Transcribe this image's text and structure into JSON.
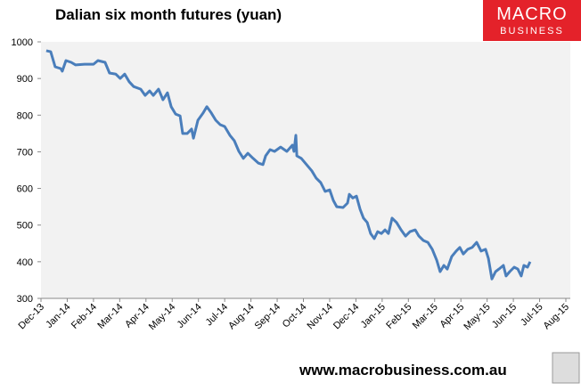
{
  "chart_data": {
    "type": "line",
    "title": "Dalian six month futures (yuan)",
    "xlim": [
      0,
      20
    ],
    "xticks": [
      {
        "value": 0,
        "label": "Dec-13"
      },
      {
        "value": 1,
        "label": "Jan-14"
      },
      {
        "value": 2,
        "label": "Feb-14"
      },
      {
        "value": 3,
        "label": "Mar-14"
      },
      {
        "value": 4,
        "label": "Apr-14"
      },
      {
        "value": 5,
        "label": "May-14"
      },
      {
        "value": 6,
        "label": "Jun-14"
      },
      {
        "value": 7,
        "label": "Jul-14"
      },
      {
        "value": 8,
        "label": "Aug-14"
      },
      {
        "value": 9,
        "label": "Sep-14"
      },
      {
        "value": 10,
        "label": "Oct-14"
      },
      {
        "value": 11,
        "label": "Nov-14"
      },
      {
        "value": 12,
        "label": "Dec-14"
      },
      {
        "value": 13,
        "label": "Jan-15"
      },
      {
        "value": 14,
        "label": "Feb-15"
      },
      {
        "value": 15,
        "label": "Mar-15"
      },
      {
        "value": 16,
        "label": "Apr-15"
      },
      {
        "value": 17,
        "label": "May-15"
      },
      {
        "value": 18,
        "label": "Jun-15"
      },
      {
        "value": 19,
        "label": "Jul-15"
      },
      {
        "value": 20,
        "label": "Aug-15"
      }
    ],
    "ylim": [
      300,
      1000
    ],
    "yticks": [
      300,
      400,
      500,
      600,
      700,
      800,
      900,
      1000
    ],
    "series": [
      {
        "color": "#4a7ebb",
        "x": [
          0.2,
          0.37,
          0.54,
          0.75,
          0.81,
          0.95,
          1.15,
          1.32,
          1.66,
          2.0,
          2.17,
          2.44,
          2.61,
          2.85,
          3.02,
          3.19,
          3.36,
          3.53,
          3.8,
          3.97,
          4.14,
          4.28,
          4.48,
          4.65,
          4.82,
          4.96,
          5.13,
          5.3,
          5.4,
          5.57,
          5.74,
          5.81,
          5.98,
          6.18,
          6.32,
          6.49,
          6.66,
          6.83,
          7.0,
          7.2,
          7.37,
          7.54,
          7.71,
          7.88,
          8.08,
          8.29,
          8.46,
          8.56,
          8.73,
          8.9,
          9.13,
          9.37,
          9.58,
          9.64,
          9.71,
          9.75,
          9.92,
          10.12,
          10.32,
          10.49,
          10.66,
          10.83,
          11.0,
          11.14,
          11.27,
          11.51,
          11.68,
          11.75,
          11.88,
          12.02,
          12.16,
          12.29,
          12.43,
          12.56,
          12.7,
          12.83,
          12.97,
          13.11,
          13.24,
          13.38,
          13.55,
          13.72,
          13.89,
          14.06,
          14.26,
          14.4,
          14.57,
          14.74,
          14.91,
          15.08,
          15.21,
          15.35,
          15.48,
          15.65,
          15.82,
          15.96,
          16.09,
          16.26,
          16.43,
          16.6,
          16.77,
          16.94,
          17.05,
          17.18,
          17.32,
          17.45,
          17.62,
          17.72,
          17.86,
          18.03,
          18.17,
          18.3,
          18.4,
          18.54,
          18.64
        ],
        "values": [
          976,
          973,
          932,
          927,
          920,
          949,
          944,
          937,
          939,
          939,
          949,
          944,
          915,
          912,
          900,
          912,
          891,
          878,
          871,
          854,
          866,
          854,
          871,
          842,
          861,
          823,
          803,
          798,
          750,
          750,
          762,
          737,
          786,
          806,
          823,
          806,
          786,
          774,
          769,
          745,
          730,
          701,
          682,
          696,
          682,
          669,
          665,
          689,
          706,
          701,
          713,
          701,
          718,
          701,
          745,
          689,
          682,
          665,
          648,
          628,
          616,
          592,
          596,
          567,
          550,
          548,
          560,
          584,
          574,
          579,
          543,
          519,
          507,
          477,
          463,
          482,
          477,
          487,
          477,
          519,
          507,
          487,
          470,
          482,
          487,
          470,
          458,
          453,
          434,
          404,
          373,
          390,
          380,
          414,
          429,
          439,
          421,
          434,
          439,
          453,
          429,
          434,
          409,
          353,
          373,
          380,
          390,
          361,
          373,
          385,
          380,
          361,
          390,
          385,
          400
        ]
      }
    ]
  },
  "branding": {
    "logo_top": "MACRO",
    "logo_bottom": "BUSINESS",
    "url": "www.macrobusiness.com.au"
  }
}
